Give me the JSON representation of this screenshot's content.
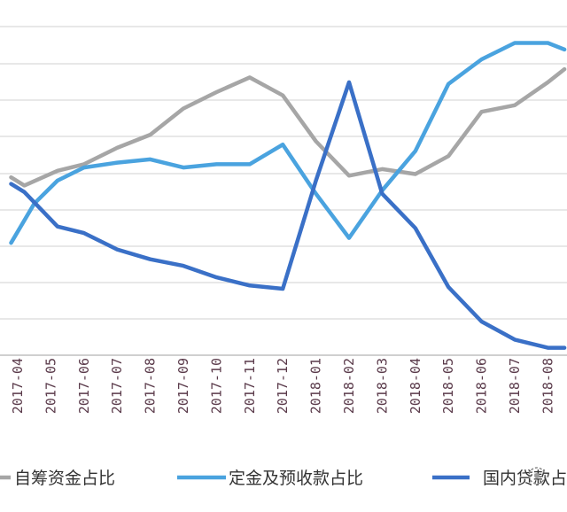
{
  "chart_data": {
    "type": "line",
    "title": "",
    "xlabel": "",
    "ylabel": "",
    "grid": true,
    "legend_position": "bottom",
    "categories": [
      "2017-04",
      "2017-05",
      "2017-06",
      "2017-07",
      "2017-08",
      "2017-09",
      "2017-10",
      "2017-11",
      "2017-12",
      "2018-01",
      "2018-02",
      "2018-03",
      "2018-04",
      "2018-05",
      "2018-06",
      "2018-07",
      "2018-08"
    ],
    "ylim": [
      0,
      10
    ],
    "series": [
      {
        "name": "自筹资金占比",
        "color": "#a6a6a6",
        "x": [
          -0.2,
          0.2,
          1.2,
          2.0,
          3.0,
          4.0,
          5.0,
          6.0,
          7.0,
          8.0,
          9.0,
          10.0,
          11.0,
          12.0,
          13.0,
          14.0,
          15.0,
          16.0,
          16.5
        ],
        "values": [
          5.4,
          5.15,
          5.6,
          5.8,
          6.3,
          6.7,
          7.5,
          8.0,
          8.45,
          7.9,
          6.5,
          5.45,
          5.65,
          5.5,
          6.05,
          7.4,
          7.6,
          8.3,
          8.7
        ]
      },
      {
        "name": "定金及预收款占比",
        "color": "#4aa3df",
        "x": [
          -0.2,
          0.5,
          1.2,
          2.0,
          3.0,
          4.0,
          5.0,
          6.0,
          7.0,
          8.0,
          9.0,
          10.0,
          11.0,
          12.0,
          13.0,
          14.0,
          15.0,
          16.0,
          16.5
        ],
        "values": [
          3.4,
          4.6,
          5.3,
          5.7,
          5.85,
          5.95,
          5.7,
          5.8,
          5.8,
          6.4,
          4.9,
          3.55,
          5.0,
          6.2,
          8.25,
          9.0,
          9.5,
          9.5,
          9.3
        ]
      },
      {
        "name": "国内贷款占比",
        "color": "#3a70c7",
        "x": [
          -0.2,
          0.2,
          1.2,
          2.0,
          3.0,
          4.0,
          5.0,
          6.0,
          7.0,
          8.0,
          9.0,
          10.0,
          11.0,
          12.0,
          13.0,
          14.0,
          15.0,
          16.0,
          16.5
        ],
        "values": [
          5.2,
          4.95,
          3.9,
          3.7,
          3.2,
          2.9,
          2.7,
          2.35,
          2.1,
          2.0,
          5.3,
          8.3,
          4.9,
          3.85,
          2.05,
          1.0,
          0.45,
          0.2,
          0.2
        ]
      }
    ]
  },
  "legend": {
    "items": [
      {
        "label": "自筹资金占比"
      },
      {
        "label": "定金及预收款占比"
      },
      {
        "label": "国内贷款占比"
      }
    ]
  }
}
